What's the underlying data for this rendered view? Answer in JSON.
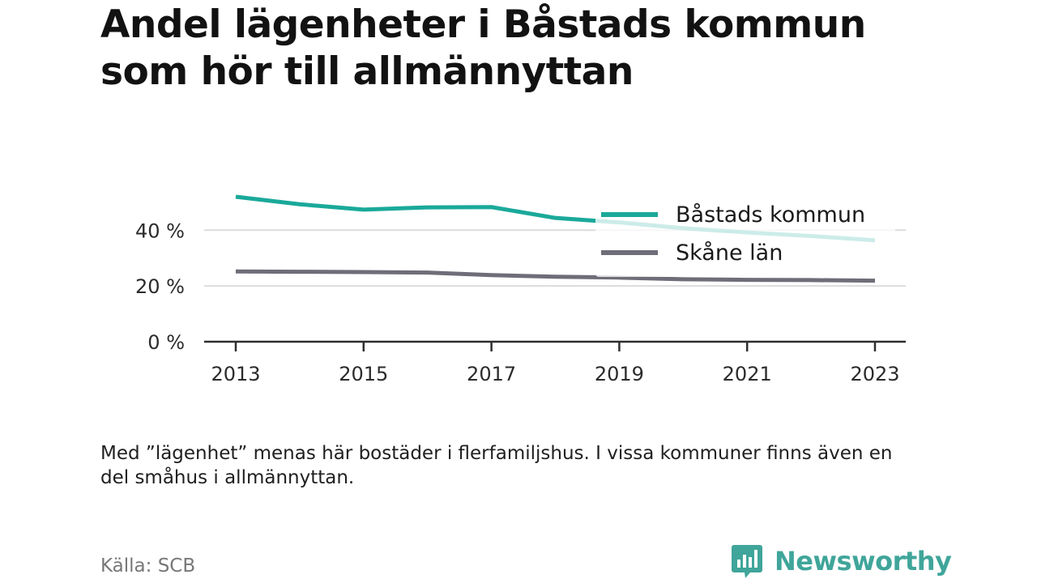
{
  "title": "Andel lägenheter i Båstads kommun som hör till allmännyttan",
  "note": "Med ”lägenhet” menas här bostäder i flerfamiljshus. I vissa kommuner finns även en del småhus i allmännyttan.",
  "source": "Källa: SCB",
  "brand": {
    "name": "Newsworthy",
    "icon": "newsworthy-logo-icon",
    "color": "#40a59a"
  },
  "chart_data": {
    "type": "line",
    "x": [
      2013,
      2014,
      2015,
      2016,
      2017,
      2018,
      2019,
      2020,
      2021,
      2022,
      2023
    ],
    "x_ticks": [
      "2013",
      "2015",
      "2017",
      "2019",
      "2021",
      "2023"
    ],
    "y_ticks": [
      {
        "value": 0,
        "label": "0 %"
      },
      {
        "value": 20,
        "label": "20 %"
      },
      {
        "value": 40,
        "label": "40 %"
      }
    ],
    "ylim": [
      0,
      52
    ],
    "xlim": [
      2012.5,
      2023.5
    ],
    "grid": true,
    "legend_position": "top-right",
    "series": [
      {
        "name": "Båstads kommun",
        "color": "#1aa99a",
        "values": [
          52.0,
          49.3,
          47.4,
          48.2,
          48.3,
          44.4,
          42.8,
          40.7,
          39.2,
          37.9,
          36.4
        ]
      },
      {
        "name": "Skåne län",
        "color": "#6e6d78",
        "values": [
          25.2,
          25.1,
          25.0,
          24.8,
          23.9,
          23.3,
          23.0,
          22.4,
          22.2,
          22.1,
          21.9
        ]
      }
    ]
  }
}
